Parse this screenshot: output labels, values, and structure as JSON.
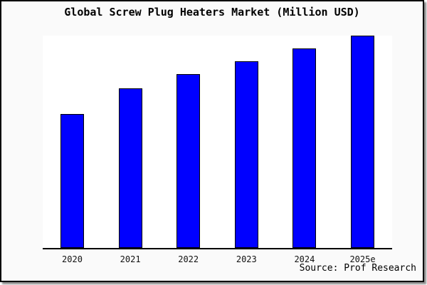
{
  "chart": {
    "title": "Global Screw Plug Heaters Market (Million USD)",
    "source": "Source: Prof Research"
  },
  "chart_data": {
    "type": "bar",
    "title": "Global Screw Plug Heaters Market (Million USD)",
    "categories": [
      "2020",
      "2021",
      "2022",
      "2023",
      "2024",
      "2025e"
    ],
    "values": [
      63,
      75,
      82,
      88,
      94,
      100
    ],
    "value_scale": "relative bar heights, tallest bar = 100 (no y-axis or value labels shown)",
    "xlabel": "",
    "ylabel": "",
    "ylim": [
      0,
      100
    ],
    "grid": false,
    "legend": "none",
    "source": "Source: Prof Research"
  },
  "colors": {
    "bar_fill": "#0000FF",
    "bar_border": "#000000",
    "plot_background": "#FFFFFF",
    "chart_background": "#FAFAFA",
    "frame_border": "#000000",
    "axis_line": "#000000"
  }
}
